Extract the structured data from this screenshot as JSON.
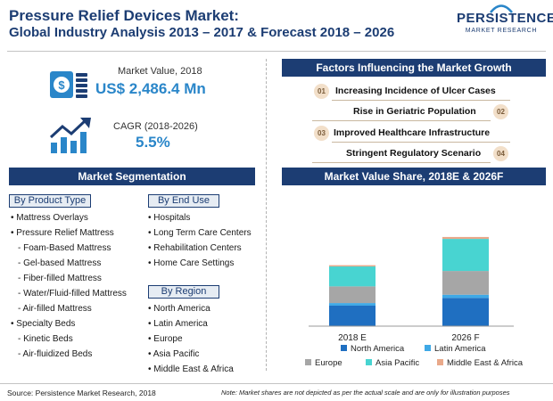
{
  "header": {
    "title_line1": "Pressure Relief Devices Market:",
    "title_line2": "Global Industry Analysis 2013 – 2017 & Forecast 2018 – 2026",
    "logo_main": "PERSISTENCE",
    "logo_sub": "MARKET RESEARCH"
  },
  "stats": {
    "market_value_label": "Market Value, 2018",
    "market_value": "US$ 2,486.4 Mn",
    "cagr_label": "CAGR (2018-2026)",
    "cagr_value": "5.5%",
    "icons": [
      "money-icon",
      "growth-chart-icon"
    ]
  },
  "segmentation": {
    "title": "Market Segmentation",
    "product_type": {
      "heading": "By Product Type",
      "items": [
        "• Mattress Overlays",
        "• Pressure Relief Mattress",
        "- Foam-Based Mattress",
        "- Gel-based Mattress",
        "- Fiber-filled Mattress",
        "- Water/Fluid-filled Mattress",
        "- Air-filled Mattress",
        "• Specialty Beds",
        "- Kinetic Beds",
        "- Air-fluidized Beds"
      ]
    },
    "end_use": {
      "heading": "By End Use",
      "items": [
        "• Hospitals",
        "• Long Term Care Centers",
        "• Rehabilitation Centers",
        "• Home Care Settings"
      ]
    },
    "region": {
      "heading": "By Region",
      "items": [
        "• North America",
        "• Latin America",
        "• Europe",
        "• Asia Pacific",
        "• Middle East & Africa"
      ]
    }
  },
  "factors": {
    "title": "Factors Influencing the Market Growth",
    "items": [
      {
        "num": "01",
        "text": "Increasing Incidence of Ulcer Cases"
      },
      {
        "num": "02",
        "text": "Rise in Geriatric Population"
      },
      {
        "num": "03",
        "text": "Improved Healthcare Infrastructure"
      },
      {
        "num": "04",
        "text": "Stringent Regulatory Scenario"
      }
    ]
  },
  "chart_title": "Market Value Share, 2018E & 2026F",
  "chart_data": {
    "type": "bar",
    "stacked": true,
    "categories": [
      "2018 E",
      "2026 F"
    ],
    "series": [
      {
        "name": "North America",
        "values": [
          32,
          44
        ],
        "color": "#1f6fc1"
      },
      {
        "name": "Latin America",
        "values": [
          4,
          5
        ],
        "color": "#3fa9e6"
      },
      {
        "name": "Europe",
        "values": [
          26,
          37
        ],
        "color": "#a6a6a6"
      },
      {
        "name": "Asia Pacific",
        "values": [
          31,
          50
        ],
        "color": "#48d4d1"
      },
      {
        "name": "Middle East & Africa",
        "values": [
          2,
          3
        ],
        "color": "#e9a98a"
      }
    ],
    "legend_position": "bottom",
    "grid": false,
    "yaxis_visible": false
  },
  "footer": {
    "source": "Source: Persistence Market Research, 2018",
    "note": "Note: Market shares are not depicted as per the actual scale and are only for illustration purposes"
  }
}
